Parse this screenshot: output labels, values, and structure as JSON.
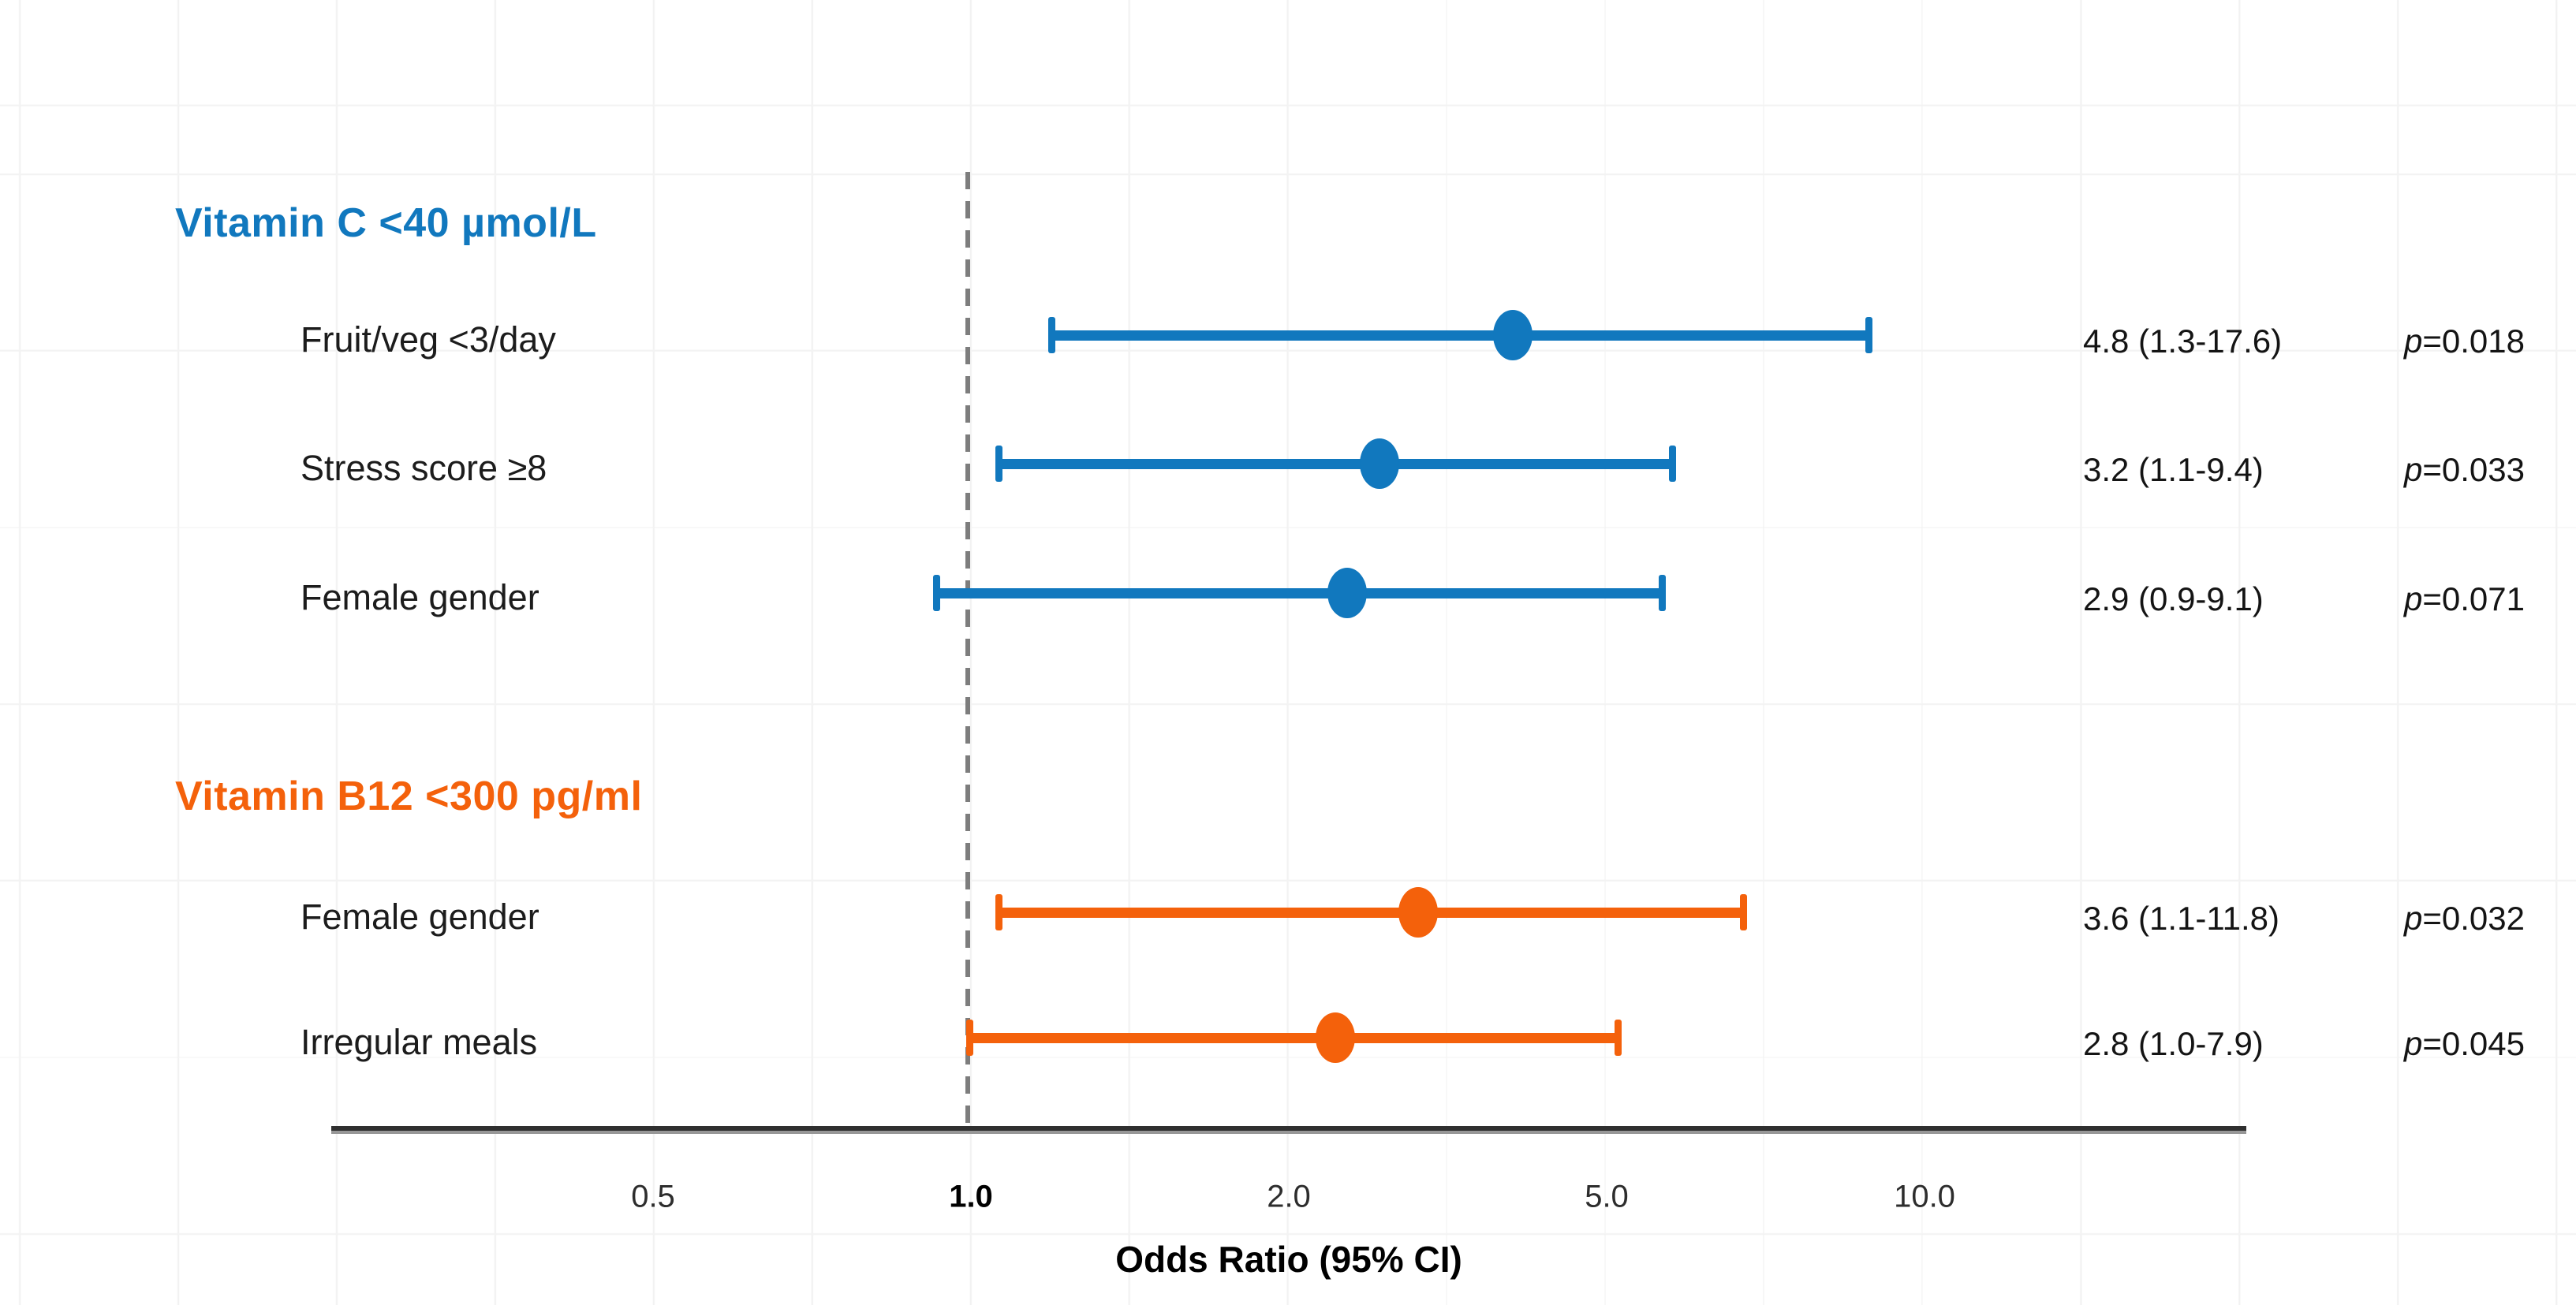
{
  "chart_data": {
    "type": "forest",
    "xlabel": "Odds Ratio (95% CI)",
    "x_scale": "log-like",
    "x_ticks": [
      {
        "label": "0.5",
        "value": 0.5,
        "bold": false
      },
      {
        "label": "1.0",
        "value": 1.0,
        "bold": true
      },
      {
        "label": "2.0",
        "value": 2.0,
        "bold": false
      },
      {
        "label": "5.0",
        "value": 5.0,
        "bold": false
      },
      {
        "label": "10.0",
        "value": 10.0,
        "bold": false
      }
    ],
    "reference_line": 1.0,
    "p_symbol": "p",
    "colors": {
      "vitamin_c_blue": "#1178be",
      "vitamin_b12_orange": "#f4610b"
    },
    "grid": "faint light-gray grid",
    "groups": [
      {
        "name": "Vitamin C <40 µmol/L",
        "color": "#1178be",
        "rows": [
          {
            "label": "Fruit/veg <3/day",
            "or": 4.8,
            "ci_low": 1.3,
            "ci_high": 17.6,
            "estimate_label": "4.8 (1.3-17.6)",
            "p_display": "=0.018"
          },
          {
            "label": "Stress score ≥8",
            "or": 3.2,
            "ci_low": 1.1,
            "ci_high": 9.4,
            "estimate_label": "3.2 (1.1-9.4)",
            "p_display": "=0.033"
          },
          {
            "label": "Female gender",
            "or": 2.9,
            "ci_low": 0.9,
            "ci_high": 9.1,
            "estimate_label": "2.9 (0.9-9.1)",
            "p_display": "=0.071"
          }
        ]
      },
      {
        "name": "Vitamin B12 <300 pg/ml",
        "color": "#f4610b",
        "rows": [
          {
            "label": "Female gender",
            "or": 3.6,
            "ci_low": 1.1,
            "ci_high": 11.8,
            "estimate_label": "3.6 (1.1-11.8)",
            "p_display": "=0.032"
          },
          {
            "label": "Irregular meals",
            "or": 2.8,
            "ci_low": 1.0,
            "ci_high": 7.9,
            "estimate_label": "2.8 (1.0-7.9)",
            "p_display": "=0.045"
          }
        ]
      }
    ]
  }
}
